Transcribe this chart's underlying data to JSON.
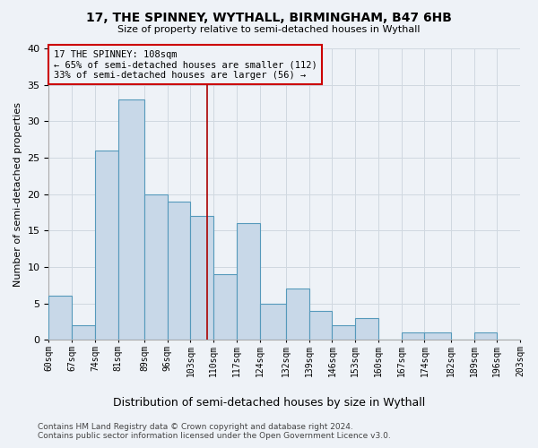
{
  "title1": "17, THE SPINNEY, WYTHALL, BIRMINGHAM, B47 6HB",
  "title2": "Size of property relative to semi-detached houses in Wythall",
  "xlabel": "Distribution of semi-detached houses by size in Wythall",
  "ylabel": "Number of semi-detached properties",
  "footer1": "Contains HM Land Registry data © Crown copyright and database right 2024.",
  "footer2": "Contains public sector information licensed under the Open Government Licence v3.0.",
  "annotation_line1": "17 THE SPINNEY: 108sqm",
  "annotation_line2": "← 65% of semi-detached houses are smaller (112)",
  "annotation_line3": "33% of semi-detached houses are larger (56) →",
  "property_size": 108,
  "bar_left_edges": [
    60,
    67,
    74,
    81,
    89,
    96,
    103,
    110,
    117,
    124,
    132,
    139,
    146,
    153,
    160,
    167,
    174,
    182,
    189,
    196
  ],
  "bin_rights": [
    67,
    74,
    81,
    89,
    96,
    103,
    110,
    117,
    124,
    132,
    139,
    146,
    153,
    160,
    167,
    174,
    182,
    189,
    196,
    203
  ],
  "bar_heights": [
    6,
    2,
    26,
    33,
    20,
    19,
    17,
    9,
    16,
    5,
    7,
    4,
    2,
    3,
    0,
    1,
    1,
    0,
    1,
    0
  ],
  "bin_labels": [
    "60sqm",
    "67sqm",
    "74sqm",
    "81sqm",
    "89sqm",
    "96sqm",
    "103sqm",
    "110sqm",
    "117sqm",
    "124sqm",
    "132sqm",
    "139sqm",
    "146sqm",
    "153sqm",
    "160sqm",
    "167sqm",
    "174sqm",
    "182sqm",
    "189sqm",
    "196sqm",
    "203sqm"
  ],
  "bar_color": "#c8d8e8",
  "bar_edge_color": "#5599bb",
  "vline_color": "#aa0000",
  "annotation_box_color": "#cc0000",
  "grid_color": "#d0d8e0",
  "ylim": [
    0,
    40
  ],
  "yticks": [
    0,
    5,
    10,
    15,
    20,
    25,
    30,
    35,
    40
  ],
  "background_color": "#eef2f7",
  "title1_fontsize": 10,
  "title2_fontsize": 8,
  "ylabel_fontsize": 8,
  "xlabel_fontsize": 9,
  "tick_fontsize": 7,
  "footer_fontsize": 6.5,
  "annot_fontsize": 7.5
}
